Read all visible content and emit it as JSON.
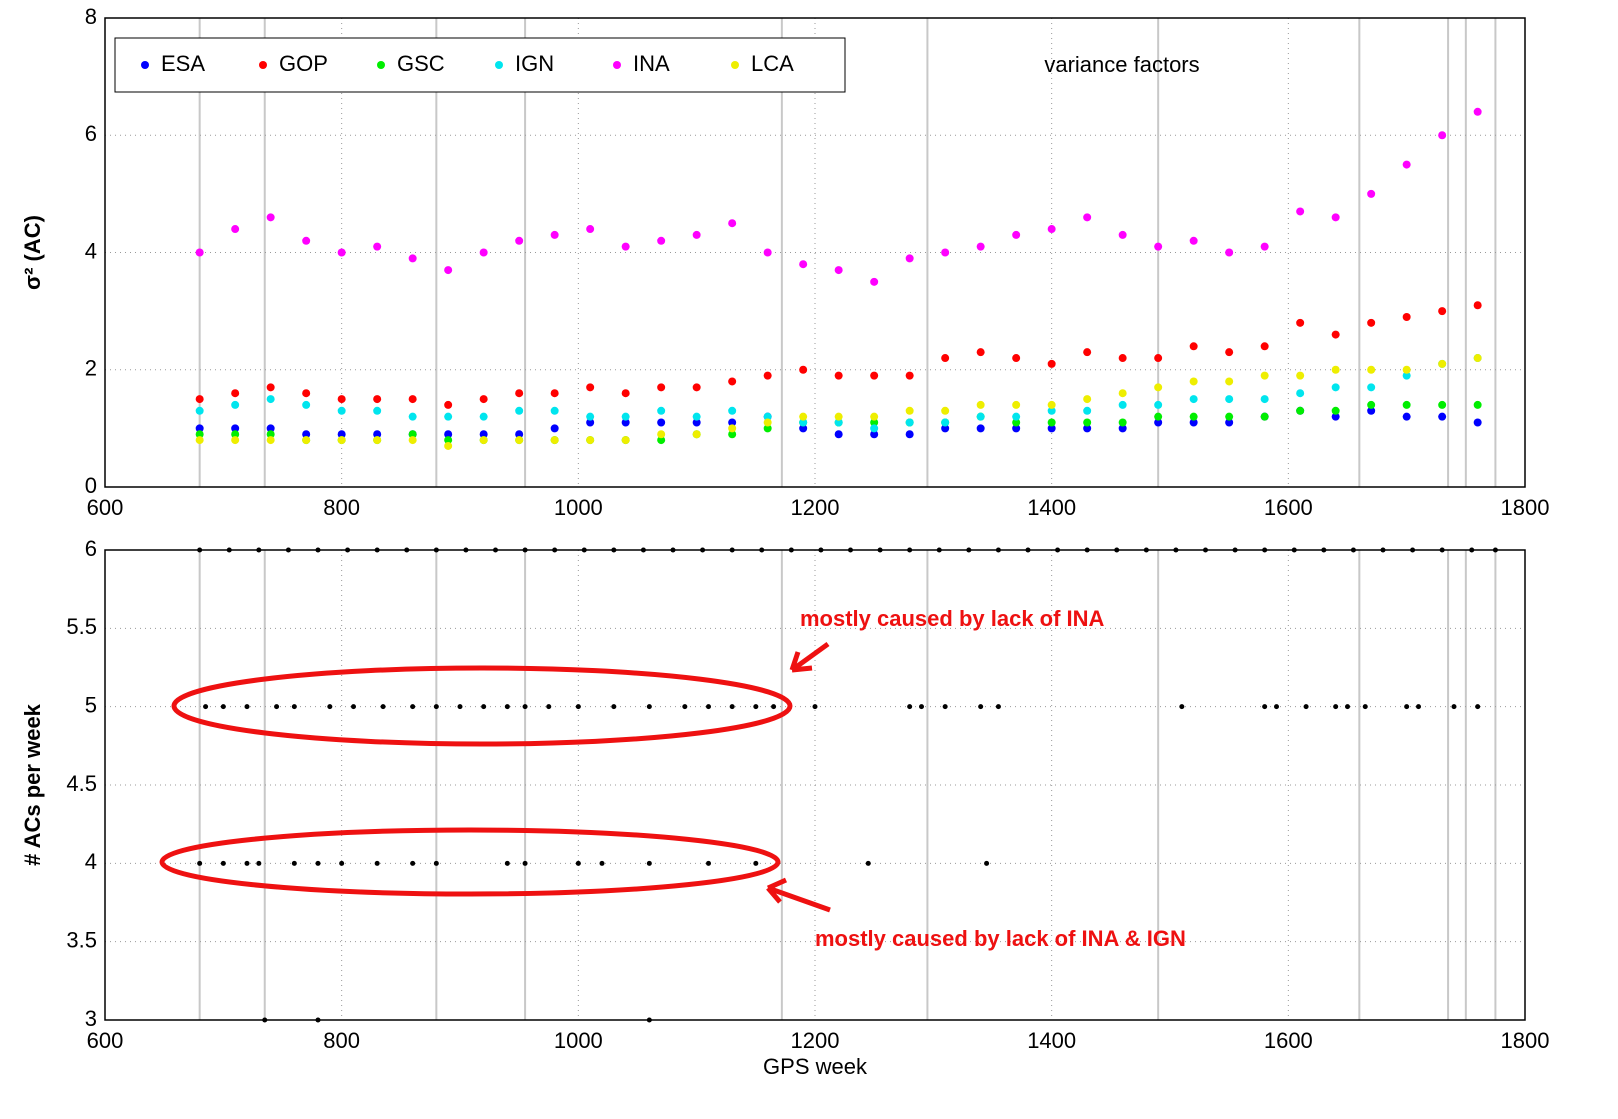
{
  "chart_data": [
    {
      "type": "scatter",
      "y_label": "σ² (AC)",
      "annotation": "variance factors",
      "xlim": [
        600,
        1800
      ],
      "xticks": [
        600,
        800,
        1000,
        1200,
        1400,
        1600,
        1800
      ],
      "ylim": [
        0,
        8
      ],
      "yticks": [
        0,
        2,
        4,
        6,
        8
      ],
      "grid": true,
      "legend": "upper left",
      "vlines": [
        680,
        735,
        880,
        955,
        1172,
        1295,
        1490,
        1660,
        1735,
        1750,
        1775
      ],
      "x": [
        680,
        710,
        740,
        770,
        800,
        830,
        860,
        890,
        920,
        950,
        980,
        1010,
        1040,
        1070,
        1100,
        1130,
        1160,
        1190,
        1220,
        1250,
        1280,
        1310,
        1340,
        1370,
        1400,
        1430,
        1460,
        1490,
        1520,
        1550,
        1580,
        1610,
        1640,
        1670,
        1700,
        1730,
        1760
      ],
      "series": [
        {
          "name": "ESA",
          "color": "#0000ff",
          "values": [
            1.0,
            1.0,
            1.0,
            0.9,
            0.9,
            0.9,
            0.9,
            0.9,
            0.9,
            0.9,
            1.0,
            1.1,
            1.1,
            1.1,
            1.1,
            1.1,
            1.2,
            1.0,
            0.9,
            0.9,
            0.9,
            1.0,
            1.0,
            1.0,
            1.0,
            1.0,
            1.0,
            1.1,
            1.1,
            1.1,
            1.2,
            1.3,
            1.2,
            1.3,
            1.2,
            1.2,
            1.1
          ]
        },
        {
          "name": "GOP",
          "color": "#ff0000",
          "values": [
            1.5,
            1.6,
            1.7,
            1.6,
            1.5,
            1.5,
            1.5,
            1.4,
            1.5,
            1.6,
            1.6,
            1.7,
            1.6,
            1.7,
            1.7,
            1.8,
            1.9,
            2.0,
            1.9,
            1.9,
            1.9,
            2.2,
            2.3,
            2.2,
            2.1,
            2.3,
            2.2,
            2.2,
            2.4,
            2.3,
            2.4,
            2.8,
            2.6,
            2.8,
            2.9,
            3.0,
            3.1
          ]
        },
        {
          "name": "GSC",
          "color": "#00ee00",
          "values": [
            0.9,
            0.9,
            0.9,
            0.8,
            0.8,
            0.8,
            0.9,
            0.8,
            0.8,
            0.8,
            0.8,
            0.8,
            0.8,
            0.8,
            0.9,
            0.9,
            1.0,
            1.1,
            1.1,
            1.1,
            1.1,
            1.1,
            1.2,
            1.1,
            1.1,
            1.1,
            1.1,
            1.2,
            1.2,
            1.2,
            1.2,
            1.3,
            1.3,
            1.4,
            1.4,
            1.4,
            1.4
          ]
        },
        {
          "name": "IGN",
          "color": "#00e5ee",
          "values": [
            1.3,
            1.4,
            1.5,
            1.4,
            1.3,
            1.3,
            1.2,
            1.2,
            1.2,
            1.3,
            1.3,
            1.2,
            1.2,
            1.3,
            1.2,
            1.3,
            1.2,
            1.1,
            1.1,
            1.0,
            1.1,
            1.1,
            1.2,
            1.2,
            1.3,
            1.3,
            1.4,
            1.4,
            1.5,
            1.5,
            1.5,
            1.6,
            1.7,
            1.7,
            1.9,
            2.1,
            2.2
          ]
        },
        {
          "name": "INA",
          "color": "#ff00ff",
          "values": [
            4.0,
            4.4,
            4.6,
            4.2,
            4.0,
            4.1,
            3.9,
            3.7,
            4.0,
            4.2,
            4.3,
            4.4,
            4.1,
            4.2,
            4.3,
            4.5,
            4.0,
            3.8,
            3.7,
            3.5,
            3.9,
            4.0,
            4.1,
            4.3,
            4.4,
            4.6,
            4.3,
            4.1,
            4.2,
            4.0,
            4.1,
            4.7,
            4.6,
            5.0,
            5.5,
            6.0,
            6.4
          ]
        },
        {
          "name": "LCA",
          "color": "#eeee00",
          "values": [
            0.8,
            0.8,
            0.8,
            0.8,
            0.8,
            0.8,
            0.8,
            0.7,
            0.8,
            0.8,
            0.8,
            0.8,
            0.8,
            0.9,
            0.9,
            1.0,
            1.1,
            1.2,
            1.2,
            1.2,
            1.3,
            1.3,
            1.4,
            1.4,
            1.4,
            1.5,
            1.6,
            1.7,
            1.8,
            1.8,
            1.9,
            1.9,
            2.0,
            2.0,
            2.0,
            2.1,
            2.2
          ]
        }
      ]
    },
    {
      "type": "scatter",
      "x_label": "GPS week",
      "y_label": "# ACs per week",
      "xlim": [
        600,
        1800
      ],
      "xticks": [
        600,
        800,
        1000,
        1200,
        1400,
        1600,
        1800
      ],
      "ylim": [
        3,
        6
      ],
      "yticks": [
        3,
        3.5,
        4,
        4.5,
        5,
        5.5,
        6
      ],
      "grid": true,
      "vlines": [
        680,
        735,
        880,
        955,
        1172,
        1295,
        1490,
        1660,
        1735,
        1750,
        1775
      ],
      "annotations": [
        "mostly caused by lack of INA",
        "mostly caused by lack of INA & IGN"
      ],
      "series": [
        {
          "color": "#000000",
          "x": [
            680,
            705,
            730,
            755,
            780,
            805,
            830,
            855,
            880,
            905,
            930,
            955,
            980,
            1005,
            1030,
            1055,
            1080,
            1105,
            1130,
            1155,
            1180,
            1205,
            1230,
            1255,
            1280,
            1305,
            1330,
            1355,
            1380,
            1405,
            1430,
            1455,
            1480,
            1505,
            1530,
            1555,
            1580,
            1605,
            1630,
            1655,
            1680,
            1705,
            1730,
            1755,
            1775,
            685,
            700,
            720,
            745,
            760,
            790,
            810,
            835,
            860,
            880,
            900,
            920,
            940,
            955,
            975,
            1000,
            1030,
            1060,
            1090,
            1110,
            1130,
            1150,
            1165,
            1200,
            1280,
            1290,
            1310,
            1340,
            1355,
            1510,
            1580,
            1590,
            1615,
            1640,
            1650,
            1665,
            1700,
            1710,
            1740,
            1760,
            680,
            700,
            720,
            730,
            760,
            780,
            800,
            830,
            860,
            880,
            940,
            955,
            1000,
            1020,
            1060,
            1110,
            1150,
            1245,
            1345,
            735,
            780,
            1060
          ],
          "values": [
            6,
            6,
            6,
            6,
            6,
            6,
            6,
            6,
            6,
            6,
            6,
            6,
            6,
            6,
            6,
            6,
            6,
            6,
            6,
            6,
            6,
            6,
            6,
            6,
            6,
            6,
            6,
            6,
            6,
            6,
            6,
            6,
            6,
            6,
            6,
            6,
            6,
            6,
            6,
            6,
            6,
            6,
            6,
            6,
            6,
            5,
            5,
            5,
            5,
            5,
            5,
            5,
            5,
            5,
            5,
            5,
            5,
            5,
            5,
            5,
            5,
            5,
            5,
            5,
            5,
            5,
            5,
            5,
            5,
            5,
            5,
            5,
            5,
            5,
            5,
            5,
            5,
            5,
            5,
            5,
            5,
            5,
            5,
            5,
            5,
            4,
            4,
            4,
            4,
            4,
            4,
            4,
            4,
            4,
            4,
            4,
            4,
            4,
            4,
            4,
            4,
            4,
            4,
            4,
            3,
            3,
            3
          ]
        }
      ]
    }
  ]
}
